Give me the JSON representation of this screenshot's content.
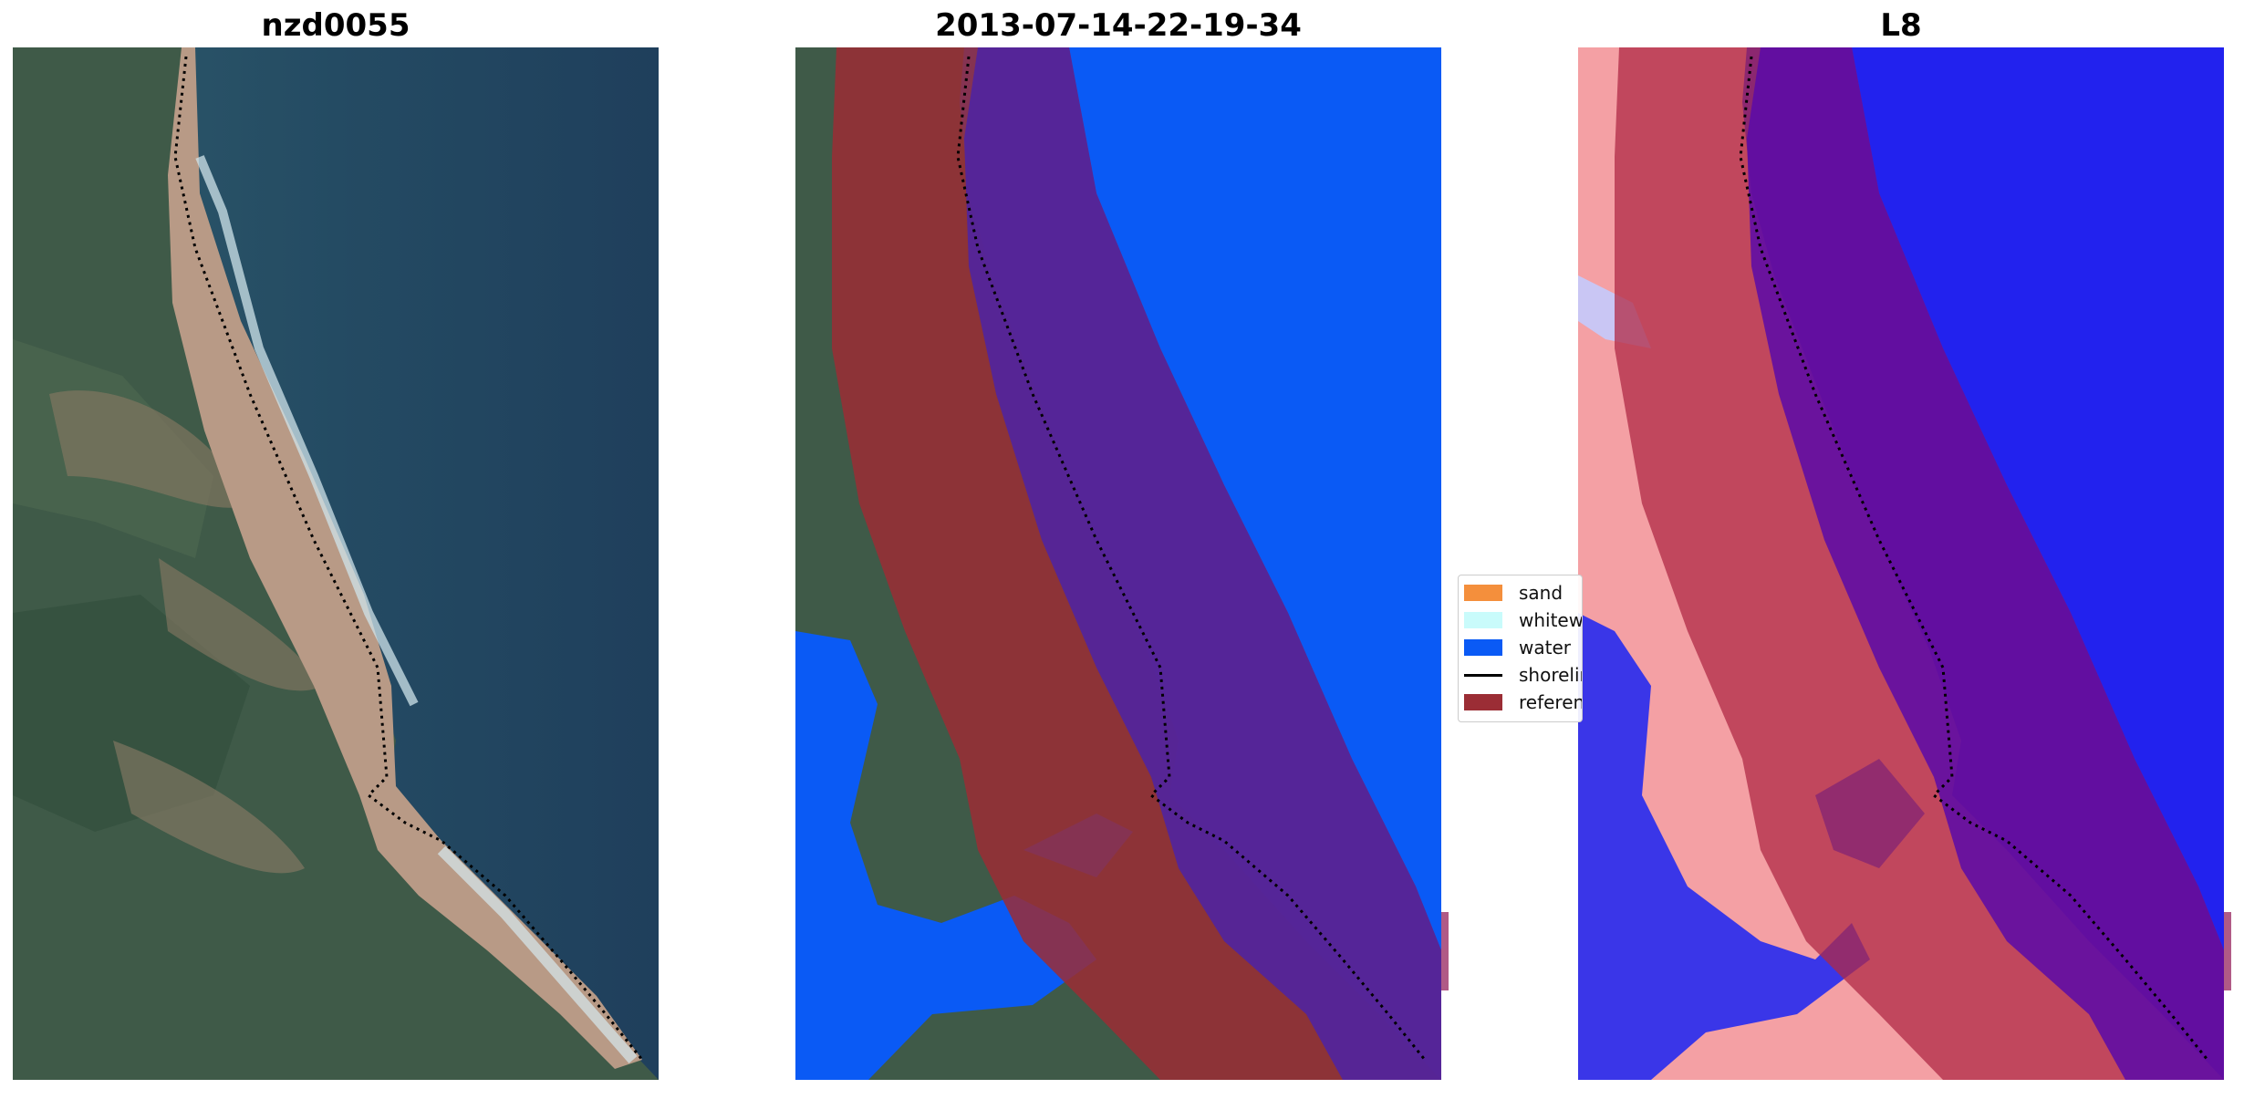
{
  "panels": [
    {
      "title": "nzd0055"
    },
    {
      "title": "2013-07-14-22-19-34"
    },
    {
      "title": "L8"
    }
  ],
  "legend": {
    "items": [
      {
        "label": "sand",
        "color": "#f48f3c",
        "kind": "patch"
      },
      {
        "label": "whitewater",
        "color": "#c9fbfb",
        "kind": "patch"
      },
      {
        "label": "water",
        "color": "#0a5af5",
        "kind": "patch"
      },
      {
        "label": "shoreline",
        "color": "#000000",
        "kind": "line"
      },
      {
        "label": "reference shoreline buffer",
        "color": "#9b2d35",
        "kind": "patch"
      }
    ]
  },
  "colors": {
    "ocean_rgb": "#25475e",
    "land_rgb": "#3f5a48",
    "sand_rgb": "#b89a86",
    "water_class": "#0a5af5",
    "buffer": "#9b2d35",
    "index_water": "#1a14f0",
    "index_land": "#f4a0a4"
  }
}
